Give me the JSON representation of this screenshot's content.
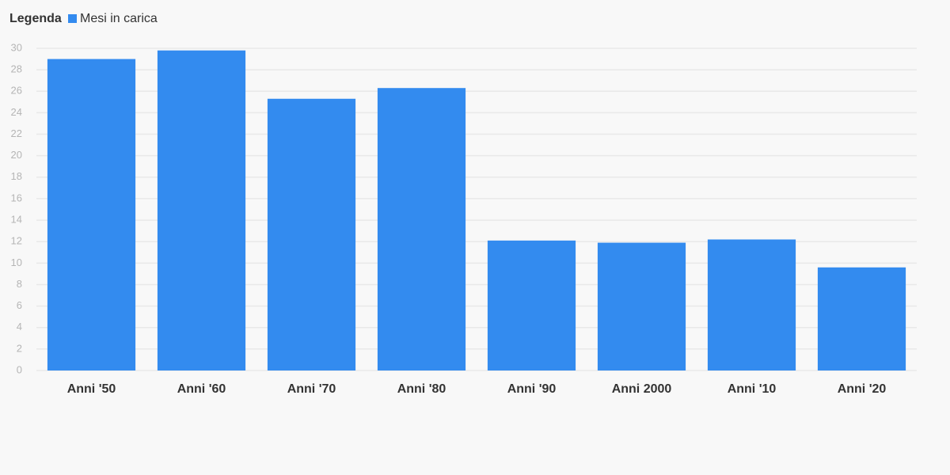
{
  "chart_data": {
    "type": "bar",
    "legend_title": "Legenda",
    "categories": [
      "Anni '50",
      "Anni '60",
      "Anni '70",
      "Anni '80",
      "Anni '90",
      "Anni 2000",
      "Anni '10",
      "Anni '20"
    ],
    "series": [
      {
        "name": "Mesi in carica",
        "color": "#338bef",
        "values": [
          29.0,
          29.8,
          25.3,
          26.3,
          12.1,
          11.9,
          12.2,
          9.6
        ]
      }
    ],
    "ylim": [
      0,
      30
    ],
    "yticks": [
      0,
      2,
      4,
      6,
      8,
      10,
      12,
      14,
      16,
      18,
      20,
      22,
      24,
      26,
      28,
      30
    ],
    "grid": true
  }
}
